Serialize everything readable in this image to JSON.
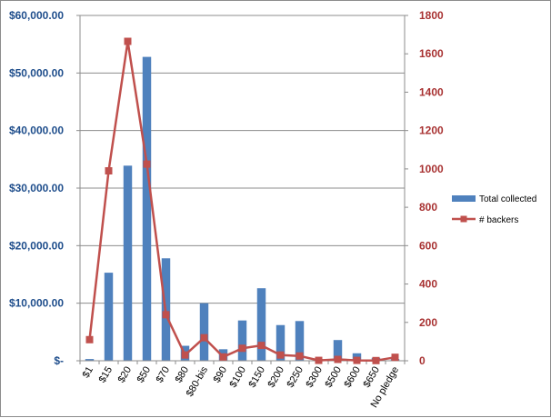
{
  "chart_data": {
    "type": "bar",
    "categories": [
      "$1",
      "$15",
      "$20",
      "$50",
      "$70",
      "$80",
      "$80-bis",
      "$90",
      "$100",
      "$150",
      "$200",
      "$250",
      "$300",
      "$500",
      "$600",
      "$650",
      "No pledge"
    ],
    "series": [
      {
        "name": "Total collected",
        "type": "bar",
        "axis": "left",
        "color": "#4f81bd",
        "values": [
          300,
          15300,
          33900,
          52800,
          17800,
          2600,
          10000,
          2000,
          7000,
          12600,
          6200,
          6900,
          300,
          3600,
          1300,
          500,
          300
        ]
      },
      {
        "name": "# backers",
        "type": "line",
        "axis": "right",
        "color": "#c0504d",
        "marker": "square",
        "values": [
          110,
          990,
          1665,
          1025,
          240,
          30,
          120,
          20,
          65,
          80,
          30,
          25,
          2,
          7,
          2,
          1,
          18
        ]
      }
    ],
    "y_left": {
      "range": [
        0,
        60000
      ],
      "ticks": [
        0,
        10000,
        20000,
        30000,
        40000,
        50000,
        60000
      ],
      "tick_labels": [
        "$-",
        "$10,000.00",
        "$20,000.00",
        "$30,000.00",
        "$40,000.00",
        "$50,000.00",
        "$60,000.00"
      ]
    },
    "y_right": {
      "range": [
        0,
        1800
      ],
      "ticks": [
        0,
        200,
        400,
        600,
        800,
        1000,
        1200,
        1400,
        1600,
        1800
      ],
      "tick_labels": [
        "0",
        "200",
        "400",
        "600",
        "800",
        "1000",
        "1200",
        "1400",
        "1600",
        "1800"
      ]
    },
    "grid": true,
    "legend": "right",
    "title": "",
    "xlabel": "",
    "ylabel": ""
  }
}
